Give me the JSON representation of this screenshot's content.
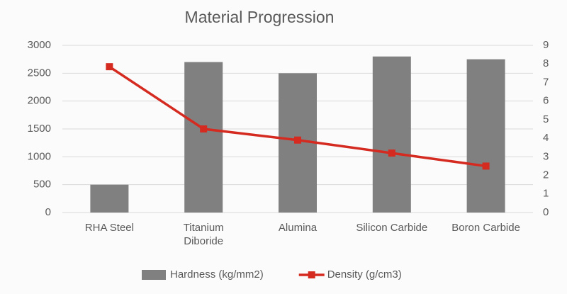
{
  "chart_data": {
    "type": "bar",
    "title": "Material Progression",
    "categories": [
      "RHA Steel",
      "Titanium\nDiboride",
      "Alumina",
      "Silicon Carbide",
      "Boron Carbide"
    ],
    "series": [
      {
        "name": "Hardness (kg/mm2)",
        "type": "bar",
        "color": "#808080",
        "values": [
          500,
          2700,
          2500,
          2800,
          2750
        ]
      },
      {
        "name": "Density (g/cm3)",
        "type": "line",
        "axis": "y2",
        "color": "#d42a20",
        "values": [
          7.85,
          4.5,
          3.9,
          3.2,
          2.5
        ]
      }
    ],
    "ylim": [
      0,
      3000
    ],
    "yticks": [
      0,
      500,
      1000,
      1500,
      2000,
      2500,
      3000
    ],
    "y2lim": [
      0,
      9
    ],
    "y2ticks": [
      0,
      1,
      2,
      3,
      4,
      5,
      6,
      7,
      8,
      9
    ],
    "grid": true,
    "legend": "bottom"
  }
}
